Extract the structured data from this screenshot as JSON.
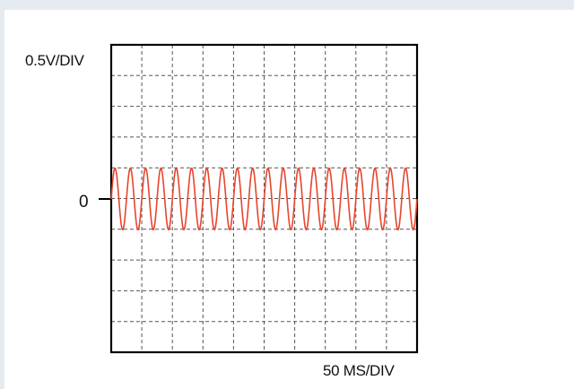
{
  "scope": {
    "volts_per_div_label": "0.5V/DIV",
    "zero_marker_label": "0",
    "time_per_div_label": "50 MS/DIV",
    "grid": {
      "horizontal_divisions": 10,
      "vertical_divisions": 10
    },
    "trace": {
      "shape": "sine",
      "cycles_on_screen": 20,
      "amplitude_divisions": 1.0,
      "offset_divisions": 0,
      "color": "#e8452c"
    },
    "colors": {
      "page_background": "#e6ebf1",
      "panel_background": "#ffffff",
      "frame": "#000000",
      "grid": "#555555"
    }
  }
}
